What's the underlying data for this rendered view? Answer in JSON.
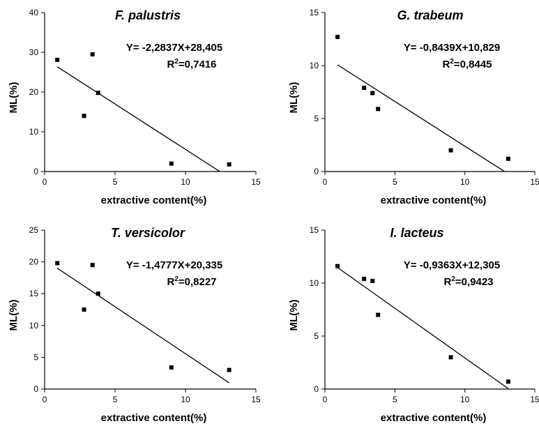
{
  "chart_data": [
    {
      "type": "scatter",
      "title": "F. palustris",
      "xlabel": "extractive content(%)",
      "ylabel": "ML(%)",
      "xlim": [
        0,
        15
      ],
      "ylim": [
        0,
        40
      ],
      "xticks": [
        0,
        5,
        10,
        15
      ],
      "yticks": [
        0,
        10,
        20,
        30,
        40
      ],
      "points": [
        [
          0.9,
          28.1
        ],
        [
          2.8,
          14.0
        ],
        [
          3.4,
          29.5
        ],
        [
          3.8,
          19.8
        ],
        [
          9.0,
          2.0
        ],
        [
          13.1,
          1.8
        ]
      ],
      "fit": {
        "slope": -2.2837,
        "intercept": 28.405,
        "x_range": [
          0.9,
          12.45
        ]
      },
      "equation": "Y=  -2,2837X+28,405",
      "r2_label": "R",
      "r2_sup": "2",
      "r2_value": "=0,7416",
      "grid": false
    },
    {
      "type": "scatter",
      "title": "G. trabeum",
      "xlabel": "extractive content(%)",
      "ylabel": "ML(%)",
      "xlim": [
        0,
        15
      ],
      "ylim": [
        0,
        15
      ],
      "xticks": [
        0,
        5,
        10,
        15
      ],
      "yticks": [
        0,
        5,
        10,
        15
      ],
      "points": [
        [
          0.9,
          12.7
        ],
        [
          2.8,
          7.9
        ],
        [
          3.4,
          7.4
        ],
        [
          3.8,
          5.9
        ],
        [
          9.0,
          2.0
        ],
        [
          13.1,
          1.2
        ]
      ],
      "fit": {
        "slope": -0.8439,
        "intercept": 10.829,
        "x_range": [
          0.9,
          12.83
        ]
      },
      "equation": "Y=  -0,8439X+10,829",
      "r2_label": "R",
      "r2_sup": "2",
      "r2_value": "=0,8445",
      "grid": false
    },
    {
      "type": "scatter",
      "title": "T. versicolor",
      "xlabel": "extractive content(%)",
      "ylabel": "ML(%)",
      "xlim": [
        0,
        15
      ],
      "ylim": [
        0,
        25
      ],
      "xticks": [
        0,
        5,
        10,
        15
      ],
      "yticks": [
        0,
        5,
        10,
        15,
        20,
        25
      ],
      "points": [
        [
          0.9,
          19.8
        ],
        [
          2.8,
          12.5
        ],
        [
          3.4,
          19.5
        ],
        [
          3.8,
          15.0
        ],
        [
          9.0,
          3.4
        ],
        [
          13.1,
          3.0
        ]
      ],
      "fit": {
        "slope": -1.4777,
        "intercept": 20.335,
        "x_range": [
          0.9,
          13.1
        ]
      },
      "equation": "Y=  -1,4777X+20,335",
      "r2_label": "R",
      "r2_sup": "2",
      "r2_value": "=0,8227",
      "grid": false
    },
    {
      "type": "scatter",
      "title": "I. lacteus",
      "xlabel": "extractive content(%)",
      "ylabel": "ML(%)",
      "xlim": [
        0,
        15
      ],
      "ylim": [
        0,
        15
      ],
      "xticks": [
        0,
        5,
        10,
        15
      ],
      "yticks": [
        0,
        5,
        10,
        15
      ],
      "points": [
        [
          0.9,
          11.6
        ],
        [
          2.8,
          10.4
        ],
        [
          3.4,
          10.2
        ],
        [
          3.8,
          7.0
        ],
        [
          9.0,
          3.0
        ],
        [
          13.1,
          0.7
        ]
      ],
      "fit": {
        "slope": -0.9363,
        "intercept": 12.305,
        "x_range": [
          0.9,
          13.1
        ]
      },
      "equation": "Y=  -0,9363X+12,305",
      "r2_label": "R",
      "r2_sup": "2",
      "r2_value": "=0,9423",
      "grid": false
    }
  ]
}
